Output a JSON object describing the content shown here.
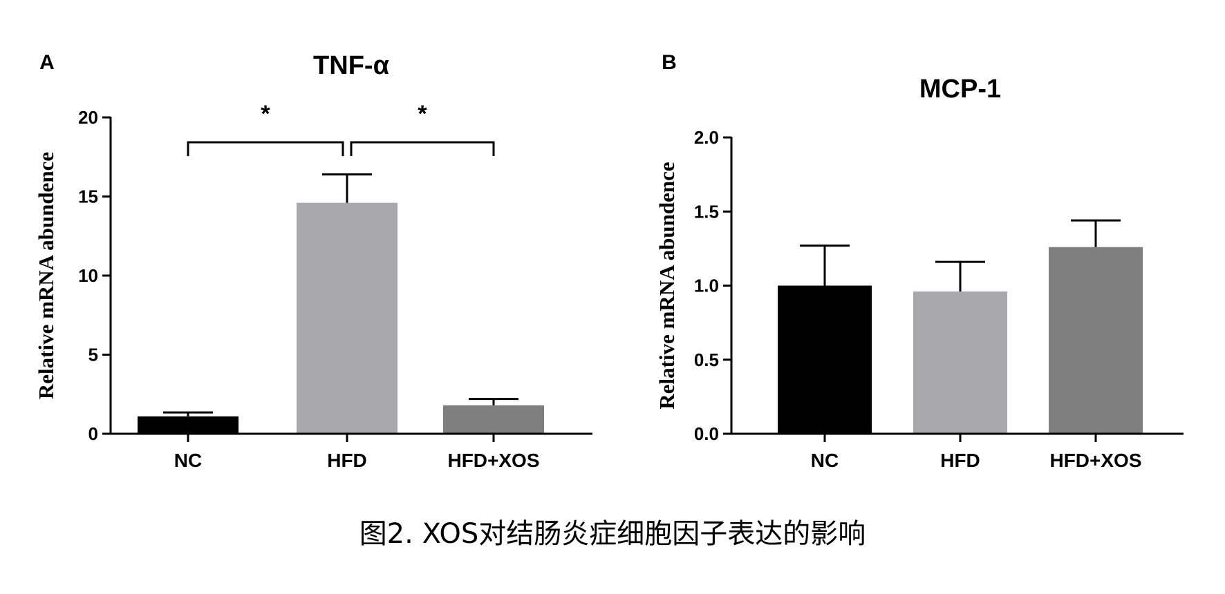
{
  "caption": "图2. XOS对结肠炎症细胞因子表达的影响",
  "chart_data": [
    {
      "panel": "A",
      "type": "bar",
      "title": "TNF-α",
      "xlabel": "",
      "ylabel": "Relative mRNA abundence",
      "categories": [
        "NC",
        "HFD",
        "HFD+XOS"
      ],
      "values": [
        1.1,
        14.6,
        1.8
      ],
      "errors": [
        0.25,
        1.8,
        0.4
      ],
      "bar_colors": [
        "#000000",
        "#a8a8ac",
        "#7f7f7f"
      ],
      "ylim": [
        0,
        20
      ],
      "yticks": [
        "0",
        "5",
        "10",
        "15",
        "20"
      ],
      "significance": [
        {
          "from": "NC",
          "to": "HFD",
          "label": "*"
        },
        {
          "from": "HFD",
          "to": "HFD+XOS",
          "label": "*"
        }
      ]
    },
    {
      "panel": "B",
      "type": "bar",
      "title": "MCP-1",
      "xlabel": "",
      "ylabel": "Relative mRNA abundence",
      "categories": [
        "NC",
        "HFD",
        "HFD+XOS"
      ],
      "values": [
        1.0,
        0.96,
        1.26
      ],
      "errors": [
        0.27,
        0.2,
        0.18
      ],
      "bar_colors": [
        "#000000",
        "#a8a8ac",
        "#7f7f7f"
      ],
      "ylim": [
        0,
        2.0
      ],
      "yticks": [
        "0.0",
        "0.5",
        "1.0",
        "1.5",
        "2.0"
      ],
      "significance": []
    }
  ]
}
